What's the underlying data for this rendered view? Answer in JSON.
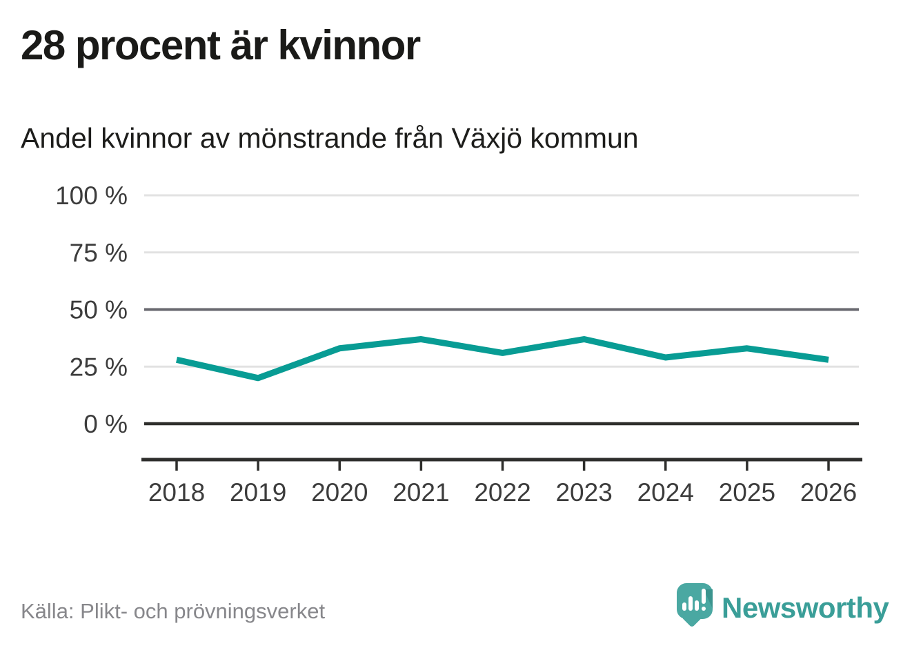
{
  "header": {
    "title": "28 procent är kvinnor",
    "subtitle": "Andel kvinnor av mönstrande från Växjö kommun"
  },
  "footer": {
    "source": "Källa: Plikt- och prövningsverket",
    "brand_name": "Newsworthy"
  },
  "colors": {
    "line": "#089c94",
    "grid_light": "#e2e2e2",
    "grid_reference": "#68686f",
    "grid_zero": "#2e2e2c",
    "axis": "#2e2e2c",
    "axis_text": "#3c3c3c",
    "title_text": "#1a1a18",
    "source_text": "#87878b",
    "logo_teal": "#4aa8a2",
    "logo_fold": "#3b948e",
    "wordmark_teal": "#3a9e98"
  },
  "chart_data": {
    "type": "line",
    "title": "28 procent är kvinnor",
    "subtitle": "Andel kvinnor av mönstrande från Växjö kommun",
    "categories": [
      "2018",
      "2019",
      "2020",
      "2021",
      "2022",
      "2023",
      "2024",
      "2025",
      "2026"
    ],
    "series": [
      {
        "name": "Andel kvinnor av mönstrande",
        "values": [
          28,
          20,
          33,
          37,
          31,
          37,
          29,
          33,
          28
        ]
      }
    ],
    "unit": "%",
    "xlabel": "",
    "ylabel": "",
    "ylim": [
      0,
      100
    ],
    "yticks": [
      0,
      25,
      50,
      75,
      100
    ],
    "ytick_labels": [
      "0 %",
      "25 %",
      "50 %",
      "75 %",
      "100 %"
    ],
    "grid": true,
    "reference_line": 50,
    "baseline": 0,
    "legend_position": "none"
  }
}
